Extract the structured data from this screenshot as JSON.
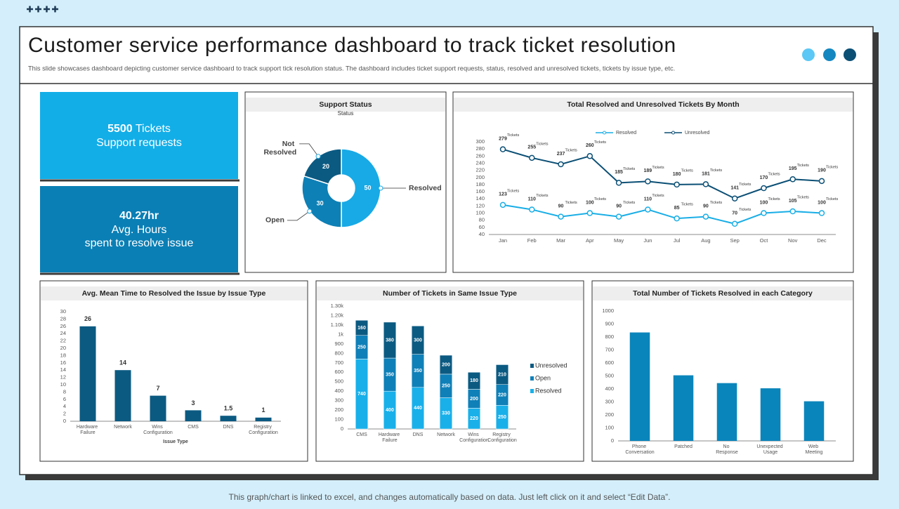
{
  "header": {
    "title": "Customer service performance dashboard to track ticket resolution",
    "subtitle": "This slide showcases dashboard depicting customer service dashboard to track support tick resolution status. The dashboard includes ticket support requests, status, resolved and unresolved tickets, tickets by issue type, etc."
  },
  "kpis": [
    {
      "value": 5500,
      "unit": "Tickets",
      "label": "Support requests"
    },
    {
      "value": "40.27hr",
      "label": "Avg. Hours",
      "detail": "spent to resolve issue"
    }
  ],
  "footer": "This graph/chart is linked to excel,  and changes automatically based on data. Just left click on it and select “Edit Data”.",
  "chart_data": [
    {
      "type": "pie",
      "title": "Support Status",
      "subtitle": "Status",
      "categories": [
        "Resolved",
        "Open",
        "Not Resolved"
      ],
      "values": [
        50,
        30,
        20
      ],
      "colors": [
        "#17aae6",
        "#0d80b6",
        "#0b5a82"
      ],
      "donut": true
    },
    {
      "type": "line",
      "title": "Total Resolved and Unresolved Tickets By Month",
      "categories": [
        "Jan",
        "Feb",
        "Mar",
        "Apr",
        "May",
        "Jun",
        "Jul",
        "Aug",
        "Sep",
        "Oct",
        "Nov",
        "Dec"
      ],
      "series": [
        {
          "name": "Resolved",
          "color": "#19aee6",
          "values": [
            123,
            110,
            90,
            100,
            90,
            110,
            85,
            90,
            70,
            100,
            105,
            100
          ]
        },
        {
          "name": "Unresolved",
          "color": "#0b4f75",
          "values": [
            279,
            255,
            237,
            260,
            185,
            189,
            180,
            181,
            141,
            170,
            195,
            190
          ]
        }
      ],
      "point_annotation": "Tickets",
      "ylim": [
        40,
        300
      ],
      "yticks": [
        40,
        60,
        80,
        100,
        120,
        140,
        160,
        180,
        200,
        220,
        240,
        260,
        280,
        300
      ],
      "legend": "top"
    },
    {
      "type": "bar",
      "title": "Avg. Mean Time to Resolved the Issue by Issue Type",
      "categories": [
        "Hardware Failure",
        "Network",
        "Wins Configuration",
        "CMS",
        "DNS",
        "Registry Configuration"
      ],
      "values": [
        26,
        14,
        7,
        3,
        1.5,
        1
      ],
      "color": "#0b5a82",
      "x_label": "Issue Type",
      "ylim": [
        0,
        30
      ],
      "yticks": [
        0,
        2,
        4,
        6,
        8,
        10,
        12,
        14,
        16,
        18,
        20,
        22,
        24,
        26,
        28,
        30
      ]
    },
    {
      "type": "bar",
      "stacked": true,
      "title": "Number of Tickets in Same Issue Type",
      "categories": [
        "CMS",
        "Hardware Failure",
        "DNS",
        "Network",
        "Wins Configuration",
        "Registry Configuration"
      ],
      "series": [
        {
          "name": "Resolved",
          "color": "#19b0ea",
          "values": [
            740,
            400,
            440,
            330,
            220,
            250
          ]
        },
        {
          "name": "Open",
          "color": "#0f80b8",
          "values": [
            250,
            350,
            350,
            250,
            200,
            220
          ]
        },
        {
          "name": "Unresolved",
          "color": "#0b5a82",
          "values": [
            160,
            380,
            300,
            200,
            180,
            210
          ]
        }
      ],
      "ylim": [
        0,
        1300
      ],
      "yticks": [
        0,
        100,
        200,
        300,
        400,
        500,
        600,
        700,
        800,
        900,
        {
          "value": 1000,
          "label": "1k"
        },
        {
          "value": 1100,
          "label": "1.10k"
        },
        {
          "value": 1200,
          "label": "1.20k"
        },
        {
          "value": 1300,
          "label": "1.30k"
        }
      ],
      "legend": "right"
    },
    {
      "type": "bar",
      "title": "Total Number of Tickets Resolved in each Category",
      "categories": [
        "Phone Conversation",
        "Patched",
        "No Response",
        "Unexpected Usage",
        "Web Meeting"
      ],
      "values": [
        835,
        505,
        445,
        405,
        305
      ],
      "color": "#0a85bb",
      "ylim": [
        0,
        1000
      ],
      "yticks": [
        0,
        100,
        200,
        300,
        400,
        500,
        600,
        700,
        800,
        900,
        1000
      ]
    }
  ]
}
